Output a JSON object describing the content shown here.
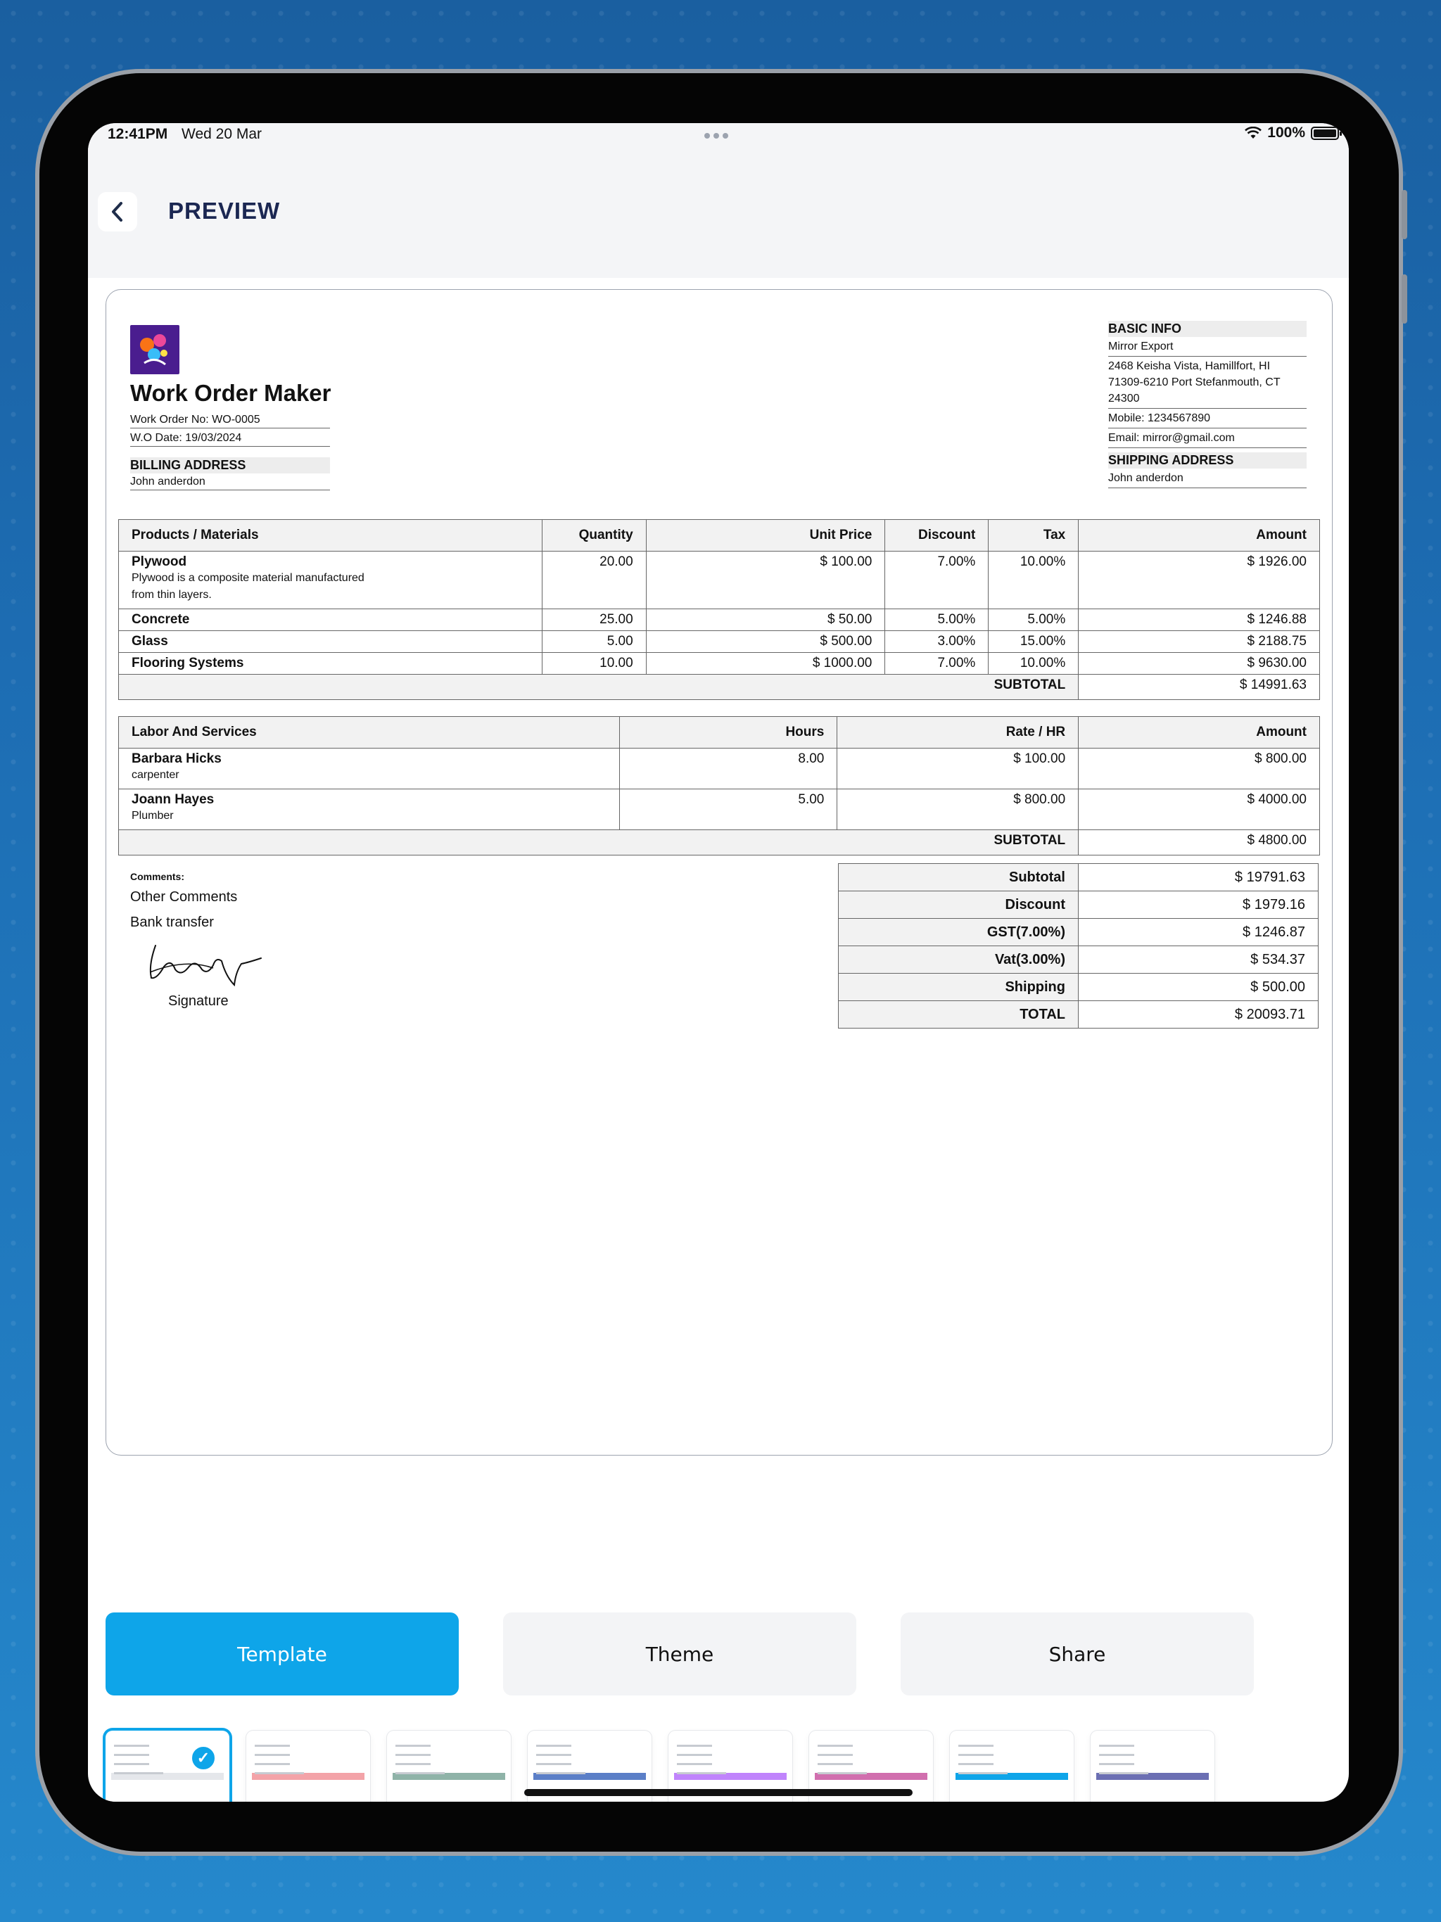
{
  "status": {
    "time": "12:41PM",
    "date": "Wed 20 Mar",
    "battery": "100%"
  },
  "header": {
    "title": "PREVIEW"
  },
  "doc": {
    "title": "Work Order Maker",
    "work_order_no": "Work Order No: WO-0005",
    "wo_date": "W.O Date: 19/03/2024",
    "billing_label": "BILLING ADDRESS",
    "billing_name": "John anderdon",
    "basic_info_label": "BASIC INFO",
    "company": "Mirror Export",
    "address": "2468 Keisha Vista, Hamillfort, HI 71309-6210 Port Stefanmouth, CT 24300",
    "mobile": "Mobile: 1234567890",
    "email": "Email: mirror@gmail.com",
    "shipping_label": "SHIPPING ADDRESS",
    "shipping_name": "John anderdon"
  },
  "products": {
    "headers": [
      "Products / Materials",
      "Quantity",
      "Unit Price",
      "Discount",
      "Tax",
      "Amount"
    ],
    "rows": [
      {
        "name": "Plywood",
        "desc": "Plywood is a composite material manufactured from thin layers.",
        "qty": "20.00",
        "price": "$ 100.00",
        "discount": "7.00%",
        "tax": "10.00%",
        "amount": "$ 1926.00"
      },
      {
        "name": "Concrete",
        "desc": "",
        "qty": "25.00",
        "price": "$ 50.00",
        "discount": "5.00%",
        "tax": "5.00%",
        "amount": "$ 1246.88"
      },
      {
        "name": "Glass",
        "desc": "",
        "qty": "5.00",
        "price": "$ 500.00",
        "discount": "3.00%",
        "tax": "15.00%",
        "amount": "$ 2188.75"
      },
      {
        "name": "Flooring Systems",
        "desc": "",
        "qty": "10.00",
        "price": "$ 1000.00",
        "discount": "7.00%",
        "tax": "10.00%",
        "amount": "$ 9630.00"
      }
    ],
    "subtotal_label": "SUBTOTAL",
    "subtotal": "$ 14991.63"
  },
  "labor": {
    "headers": [
      "Labor And Services",
      "Hours",
      "Rate / HR",
      "Amount"
    ],
    "rows": [
      {
        "name": "Barbara Hicks",
        "role": "carpenter",
        "hours": "8.00",
        "rate": "$ 100.00",
        "amount": "$ 800.00"
      },
      {
        "name": "Joann Hayes",
        "role": "Plumber",
        "hours": "5.00",
        "rate": "$ 800.00",
        "amount": "$ 4000.00"
      }
    ],
    "subtotal_label": "SUBTOTAL",
    "subtotal": "$ 4800.00"
  },
  "comments": {
    "label": "Comments:",
    "line1": "Other Comments",
    "line2": "Bank transfer",
    "signature_label": "Signature"
  },
  "totals": [
    {
      "label": "Subtotal",
      "value": "$ 19791.63"
    },
    {
      "label": "Discount",
      "value": "$ 1979.16"
    },
    {
      "label": "GST(7.00%)",
      "value": "$ 1246.87"
    },
    {
      "label": "Vat(3.00%)",
      "value": "$ 534.37"
    },
    {
      "label": "Shipping",
      "value": "$ 500.00"
    },
    {
      "label": "TOTAL",
      "value": "$ 20093.71"
    }
  ],
  "actions": {
    "template": "Template",
    "theme": "Theme",
    "share": "Share"
  },
  "colors": {
    "accent": "#0ea5e9",
    "title": "#1b2752",
    "button_bg": "#f3f4f6"
  },
  "templates": [
    {
      "accent": "#e5e7eb",
      "selected": true
    },
    {
      "accent": "#f3a3a8",
      "selected": false
    },
    {
      "accent": "#8fb3a8",
      "selected": false
    },
    {
      "accent": "#5b7fc7",
      "selected": false
    },
    {
      "accent": "#c084fc",
      "selected": false
    },
    {
      "accent": "#d16fae",
      "selected": false
    },
    {
      "accent": "#0ea5e9",
      "selected": false
    },
    {
      "accent": "#6b6fb3",
      "selected": false
    }
  ]
}
